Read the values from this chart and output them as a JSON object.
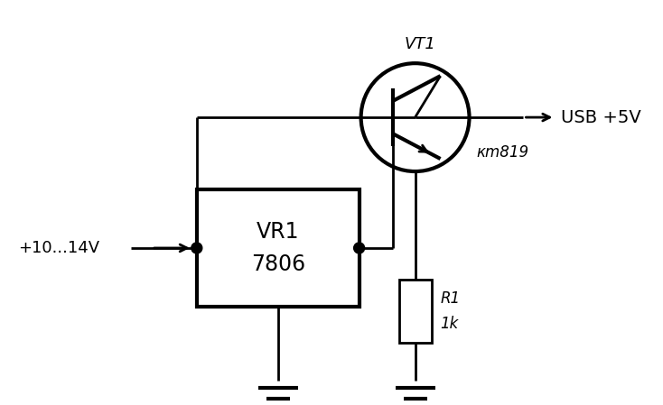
{
  "bg_color": "#ffffff",
  "line_color": "#000000",
  "lw": 2.0,
  "lw_thick": 3.0,
  "fig_width": 7.34,
  "fig_height": 4.49,
  "vr1_label_top": "VR1",
  "vr1_label_bot": "7806",
  "vt1_label": "VT1",
  "km_label": "кm819",
  "r1_label_top": "R1",
  "r1_label_bot": "1k",
  "input_label": "+10...14V",
  "output_label": "USB +5V"
}
